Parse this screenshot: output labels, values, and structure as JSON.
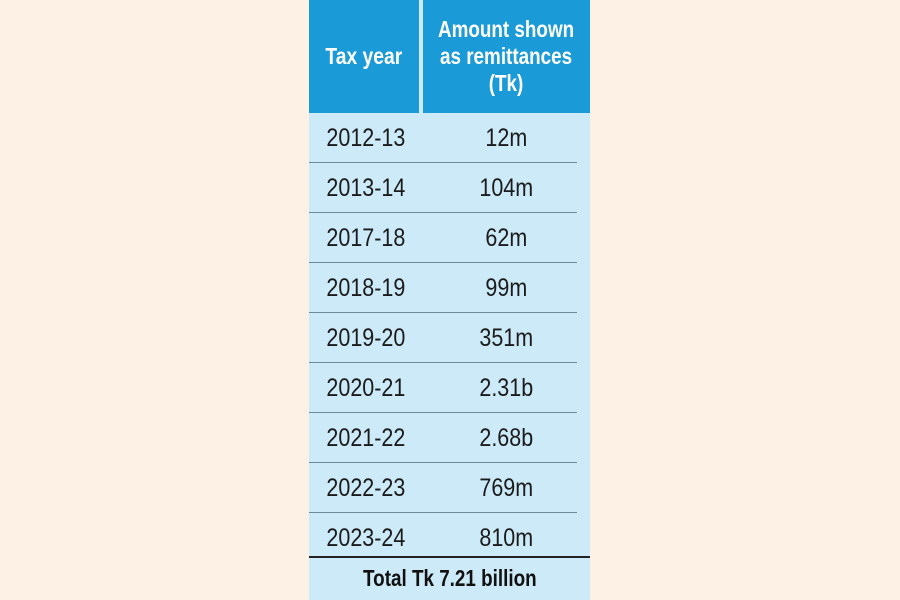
{
  "colors": {
    "page_background": "#fdf1e6",
    "table_background": "#cdeaf8",
    "header_background": "#1a9ad6",
    "header_text": "#ffffff",
    "body_text": "#1b1b1b"
  },
  "chart_data": {
    "type": "table",
    "columns": [
      "Tax year",
      "Amount shown\nas remittances\n(Tk)"
    ],
    "rows": [
      {
        "year": "2012-13",
        "amount": "12m"
      },
      {
        "year": "2013-14",
        "amount": "104m"
      },
      {
        "year": "2017-18",
        "amount": "62m"
      },
      {
        "year": "2018-19",
        "amount": "99m"
      },
      {
        "year": "2019-20",
        "amount": "351m"
      },
      {
        "year": "2020-21",
        "amount": "2.31b"
      },
      {
        "year": "2021-22",
        "amount": "2.68b"
      },
      {
        "year": "2022-23",
        "amount": "769m"
      },
      {
        "year": "2023-24",
        "amount": "810m"
      }
    ],
    "total": "Total Tk 7.21 billion"
  }
}
